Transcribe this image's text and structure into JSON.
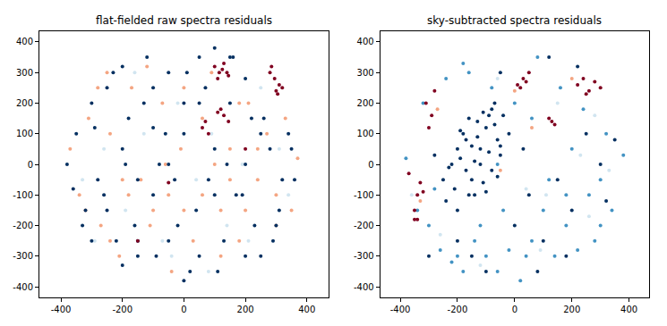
{
  "chart_data": [
    {
      "type": "scatter",
      "title": "flat-fielded raw spectra residuals",
      "xlim": [
        -470,
        470
      ],
      "ylim": [
        -435,
        435
      ],
      "xticks": [
        -400,
        -200,
        0,
        200,
        400
      ],
      "yticks": [
        -400,
        -300,
        -200,
        -100,
        0,
        100,
        200,
        300,
        400
      ],
      "grid": false,
      "series": [
        {
          "color": "#d1e5f0",
          "x": [
            -330,
            -260,
            -190,
            -130,
            -70,
            -20,
            40,
            90,
            140,
            190,
            250,
            310,
            -290,
            -160,
            -40,
            80,
            210,
            340
          ],
          "y": [
            -50,
            50,
            -150,
            100,
            -250,
            200,
            -50,
            100,
            -200,
            0,
            250,
            50,
            -250,
            300,
            -300,
            -350,
            -250,
            -100
          ]
        },
        {
          "color": "#f4a582",
          "x": [
            -370,
            -340,
            -310,
            -270,
            -240,
            -210,
            -170,
            -140,
            -110,
            -70,
            -40,
            -10,
            30,
            60,
            90,
            120,
            150,
            180,
            210,
            240,
            270,
            300,
            330,
            370,
            -320,
            -280,
            -240,
            -180,
            -120,
            -60,
            0,
            60,
            120,
            180,
            240,
            300,
            -200,
            -100,
            0,
            100,
            200,
            -250,
            -50,
            150,
            350
          ],
          "y": [
            50,
            -100,
            150,
            -200,
            100,
            -300,
            250,
            -50,
            -200,
            200,
            -350,
            50,
            -250,
            -100,
            300,
            -150,
            50,
            -250,
            200,
            -50,
            100,
            -100,
            150,
            20,
            -150,
            250,
            -250,
            -100,
            320,
            0,
            -150,
            150,
            -300,
            200,
            50,
            -200,
            -50,
            -150,
            250,
            0,
            -150,
            300,
            -100,
            -50,
            -150
          ]
        },
        {
          "color": "#053061",
          "x": [
            -380,
            -350,
            -320,
            -300,
            -280,
            -250,
            -220,
            -200,
            -180,
            -150,
            -120,
            -100,
            -80,
            -50,
            -20,
            0,
            20,
            50,
            80,
            100,
            130,
            160,
            190,
            220,
            250,
            280,
            310,
            340,
            360,
            -360,
            -330,
            -290,
            -260,
            -230,
            -190,
            -160,
            -130,
            -90,
            -60,
            -30,
            10,
            40,
            70,
            110,
            140,
            170,
            200,
            230,
            260,
            290,
            320,
            350,
            -300,
            -250,
            -200,
            -150,
            -100,
            -50,
            0,
            50,
            100,
            150,
            200,
            250,
            300,
            -200,
            -100,
            0,
            100,
            200,
            -150,
            -50,
            50,
            150
          ],
          "y": [
            0,
            100,
            -150,
            200,
            -50,
            250,
            -250,
            50,
            150,
            -300,
            350,
            -100,
            0,
            300,
            -200,
            100,
            -350,
            200,
            -50,
            50,
            -250,
            350,
            -100,
            150,
            -300,
            50,
            -150,
            100,
            -50,
            -80,
            -200,
            120,
            -100,
            300,
            0,
            -200,
            200,
            -300,
            100,
            -50,
            300,
            -150,
            250,
            -350,
            0,
            -100,
            280,
            -200,
            150,
            -250,
            -50,
            50,
            -250,
            -150,
            -330,
            -50,
            120,
            -250,
            -380,
            -300,
            380,
            200,
            -300,
            100,
            -200,
            320,
            250,
            200,
            -100,
            0,
            -250,
            0,
            350,
            350
          ]
        },
        {
          "color": "#800020",
          "x": [
            100,
            115,
            130,
            145,
            110,
            125,
            140,
            280,
            295,
            310,
            300,
            285,
            320,
            305,
            110,
            130,
            145,
            120,
            60,
            70,
            80,
            -50,
            200,
            -150
          ],
          "y": [
            320,
            300,
            330,
            290,
            280,
            310,
            300,
            300,
            280,
            260,
            240,
            320,
            250,
            230,
            170,
            160,
            140,
            180,
            120,
            140,
            100,
            -60,
            50,
            -250
          ]
        }
      ]
    },
    {
      "type": "scatter",
      "title": "sky-subtracted spectra residuals",
      "xlim": [
        -470,
        470
      ],
      "ylim": [
        -435,
        435
      ],
      "xticks": [
        -400,
        -200,
        0,
        200,
        400
      ],
      "yticks": [
        -400,
        -300,
        -200,
        -100,
        0,
        100,
        200,
        300,
        400
      ],
      "grid": false,
      "series": [
        {
          "color": "#d1e5f0",
          "x": [
            -360,
            -120,
            40,
            150,
            260,
            330,
            -60,
            110,
            230,
            -260,
            90,
            280
          ],
          "y": [
            -100,
            -330,
            -80,
            200,
            -170,
            -20,
            280,
            -100,
            30,
            -230,
            -280,
            160
          ]
        },
        {
          "color": "#4393c3",
          "x": [
            -380,
            -340,
            -300,
            -260,
            -220,
            -180,
            -140,
            -100,
            -60,
            -20,
            20,
            60,
            100,
            140,
            180,
            220,
            260,
            300,
            340,
            380,
            -320,
            -240,
            -160,
            -80,
            0,
            80,
            160,
            240,
            320,
            -280,
            -200,
            -120,
            -40,
            40,
            120,
            200,
            280,
            -180,
            -60,
            60,
            180,
            300
          ],
          "y": [
            20,
            -150,
            -200,
            -280,
            -320,
            -350,
            -250,
            -300,
            -350,
            -280,
            -380,
            -250,
            -150,
            -300,
            -200,
            -280,
            -100,
            -200,
            -150,
            30,
            200,
            280,
            300,
            250,
            200,
            350,
            250,
            180,
            100,
            -80,
            -300,
            -200,
            -150,
            -300,
            -50,
            50,
            -250,
            330,
            0,
            150,
            -100,
            -50
          ]
        },
        {
          "color": "#f4a582",
          "x": [
            -330,
            -270,
            0,
            60,
            200,
            -50
          ],
          "y": [
            -120,
            180,
            240,
            120,
            280,
            -20
          ]
        },
        {
          "color": "#053061",
          "x": [
            -250,
            -220,
            -200,
            -180,
            -160,
            -140,
            -120,
            -100,
            -80,
            -60,
            -40,
            -20,
            -240,
            -210,
            -190,
            -170,
            -150,
            -130,
            -110,
            -90,
            -70,
            -50,
            -230,
            -200,
            -170,
            -140,
            -110,
            -80,
            -50,
            -160,
            -130,
            -100,
            -70,
            -190,
            -120,
            -90,
            -150,
            -60,
            -300,
            50,
            100,
            200,
            300,
            350,
            -100,
            0,
            150,
            250,
            -50,
            80,
            180,
            -200,
            30,
            120,
            -280,
            320,
            220,
            -150
          ],
          "y": [
            -50,
            0,
            50,
            100,
            150,
            -100,
            0,
            120,
            180,
            80,
            160,
            100,
            -120,
            -80,
            20,
            -20,
            60,
            140,
            -60,
            40,
            130,
            30,
            -10,
            -150,
            80,
            10,
            170,
            -20,
            60,
            -100,
            90,
            -90,
            200,
            110,
            50,
            160,
            -50,
            -40,
            -300,
            -100,
            -250,
            -150,
            0,
            80,
            -350,
            -200,
            -50,
            100,
            300,
            -350,
            -300,
            -250,
            50,
            350,
            30,
            -120,
            320,
            -300
          ]
        },
        {
          "color": "#800020",
          "x": [
            -350,
            -350,
            -340,
            -330,
            -370,
            -300,
            -290,
            -310,
            -280,
            10,
            30,
            50,
            20,
            40,
            220,
            240,
            260,
            280,
            300,
            250,
            120,
            130,
            140,
            -340,
            -320
          ],
          "y": [
            -180,
            -150,
            -100,
            -60,
            -30,
            120,
            160,
            200,
            240,
            260,
            280,
            300,
            250,
            270,
            260,
            280,
            240,
            270,
            250,
            230,
            150,
            140,
            130,
            -180,
            -90
          ]
        }
      ]
    }
  ]
}
